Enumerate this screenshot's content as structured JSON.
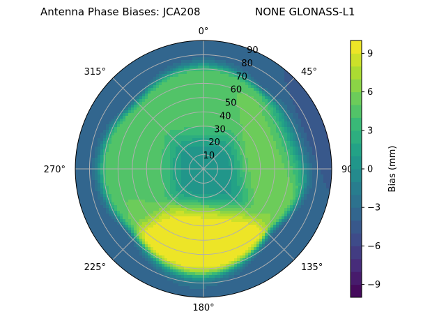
{
  "title_left": "Antenna Phase Biases: JCA208",
  "title_right": "NONE GLONASS-L1",
  "chart_data": {
    "type": "polar-contour",
    "angle_tick_labels": [
      "0°",
      "45°",
      "90°",
      "135°",
      "180°",
      "225°",
      "270°",
      "315°"
    ],
    "radial_tick_labels": [
      "10",
      "20",
      "30",
      "40",
      "50",
      "60",
      "70",
      "80",
      "90"
    ],
    "radial_range": [
      0,
      90
    ],
    "grid": true,
    "colormap": "viridis",
    "colorbar": {
      "label": "Bias (mm)",
      "range": [
        -10,
        10
      ],
      "ticks": [
        -9,
        -6,
        -3,
        0,
        3,
        6,
        9
      ],
      "tick_labels": [
        "−9",
        "−6",
        "−3",
        "0",
        "3",
        "6",
        "9"
      ],
      "levels": 20
    },
    "regions": [
      {
        "description": "outer rim",
        "azimuth_deg": [
          0,
          360
        ],
        "zenith_deg": [
          80,
          90
        ],
        "bias_mm": -4
      },
      {
        "description": "east rim minimum",
        "azimuth_deg": 75,
        "zenith_deg": 85,
        "bias_mm": -6
      },
      {
        "description": "center",
        "azimuth_deg": 0,
        "zenith_deg": 0,
        "bias_mm": 0
      },
      {
        "description": "north ring",
        "azimuth_deg": 0,
        "zenith_deg": 45,
        "bias_mm": 5
      },
      {
        "description": "east ring",
        "azimuth_deg": 80,
        "zenith_deg": 50,
        "bias_mm": 6
      },
      {
        "description": "west ring",
        "azimuth_deg": 270,
        "zenith_deg": 45,
        "bias_mm": 5
      },
      {
        "description": "southern maximum",
        "azimuth_deg": 185,
        "zenith_deg": 52,
        "bias_mm": 10
      }
    ]
  }
}
